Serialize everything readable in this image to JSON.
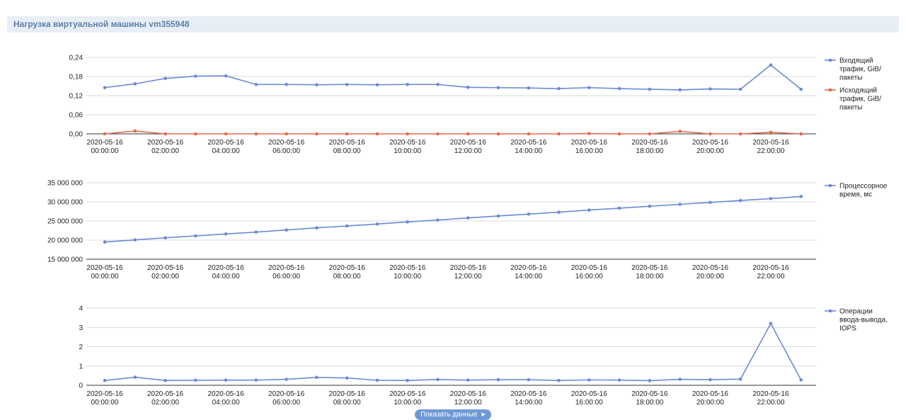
{
  "header": {
    "title": "Нагрузка виртуальной машины vm355948"
  },
  "show_data_label": "Показать данные",
  "chart_data": [
    {
      "type": "line",
      "x_ticks": [
        [
          "2020-05-16",
          "00:00:00"
        ],
        [
          "2020-05-16",
          "02:00:00"
        ],
        [
          "2020-05-16",
          "04:00:00"
        ],
        [
          "2020-05-16",
          "06:00:00"
        ],
        [
          "2020-05-16",
          "08:00:00"
        ],
        [
          "2020-05-16",
          "10:00:00"
        ],
        [
          "2020-05-16",
          "12:00:00"
        ],
        [
          "2020-05-16",
          "14:00:00"
        ],
        [
          "2020-05-16",
          "16:00:00"
        ],
        [
          "2020-05-16",
          "18:00:00"
        ],
        [
          "2020-05-16",
          "20:00:00"
        ],
        [
          "2020-05-16",
          "22:00:00"
        ]
      ],
      "x_hours": [
        0,
        1,
        2,
        3,
        4,
        5,
        6,
        7,
        8,
        9,
        10,
        11,
        12,
        13,
        14,
        15,
        16,
        17,
        18,
        19,
        20,
        21,
        22,
        23
      ],
      "y_ticks": [
        "0,00",
        "0,06",
        "0,12",
        "0,18",
        "0,24"
      ],
      "ylim": [
        0,
        0.24
      ],
      "grid": true,
      "legend_position": "right",
      "series": [
        {
          "name": "Входящий трафик, GiB/пакеты",
          "legend_lines": [
            "Входящий",
            "трафик, GiB/",
            "пакеты"
          ],
          "color": "#6a8ad8",
          "values": [
            0.145,
            0.157,
            0.174,
            0.181,
            0.182,
            0.155,
            0.155,
            0.154,
            0.155,
            0.154,
            0.155,
            0.155,
            0.146,
            0.145,
            0.144,
            0.142,
            0.145,
            0.142,
            0.14,
            0.138,
            0.141,
            0.14,
            0.216,
            0.14
          ]
        },
        {
          "name": "Исходящий трафик, GiB/пакеты",
          "legend_lines": [
            "Исходящий",
            "трафик, GiB/",
            "пакеты"
          ],
          "color": "#e4694f",
          "values": [
            0.0,
            0.009,
            0.0,
            0.0,
            0.0,
            0.0,
            0.0,
            0.0,
            0.0,
            0.0,
            0.0,
            0.0,
            0.0,
            0.0,
            0.0,
            0.0,
            0.001,
            0.0,
            0.0,
            0.008,
            0.0,
            0.0,
            0.005,
            0.0
          ]
        }
      ]
    },
    {
      "type": "line",
      "x_ticks": [
        [
          "2020-05-16",
          "00:00:00"
        ],
        [
          "2020-05-16",
          "02:00:00"
        ],
        [
          "2020-05-16",
          "04:00:00"
        ],
        [
          "2020-05-16",
          "06:00:00"
        ],
        [
          "2020-05-16",
          "08:00:00"
        ],
        [
          "2020-05-16",
          "10:00:00"
        ],
        [
          "2020-05-16",
          "12:00:00"
        ],
        [
          "2020-05-16",
          "14:00:00"
        ],
        [
          "2020-05-16",
          "16:00:00"
        ],
        [
          "2020-05-16",
          "18:00:00"
        ],
        [
          "2020-05-16",
          "20:00:00"
        ],
        [
          "2020-05-16",
          "22:00:00"
        ]
      ],
      "x_hours": [
        0,
        1,
        2,
        3,
        4,
        5,
        6,
        7,
        8,
        9,
        10,
        11,
        12,
        13,
        14,
        15,
        16,
        17,
        18,
        19,
        20,
        21,
        22,
        23
      ],
      "y_ticks": [
        "15 000 000",
        "20 000 000",
        "25 000 000",
        "30 000 000",
        "35 000 000"
      ],
      "ylim": [
        15000000,
        35000000
      ],
      "grid": true,
      "legend_position": "right",
      "series": [
        {
          "name": "Процессорное время, мс",
          "legend_lines": [
            "Процессорное",
            "время, мс"
          ],
          "color": "#6a8ad8",
          "values": [
            19500000,
            20050000,
            20600000,
            21100000,
            21600000,
            22100000,
            22650000,
            23200000,
            23700000,
            24200000,
            24750000,
            25250000,
            25800000,
            26300000,
            26800000,
            27300000,
            27850000,
            28350000,
            28850000,
            29350000,
            29850000,
            30350000,
            30850000,
            31400000
          ]
        }
      ]
    },
    {
      "type": "line",
      "x_ticks": [
        [
          "2020-05-16",
          "00:00:00"
        ],
        [
          "2020-05-16",
          "02:00:00"
        ],
        [
          "2020-05-16",
          "04:00:00"
        ],
        [
          "2020-05-16",
          "06:00:00"
        ],
        [
          "2020-05-16",
          "08:00:00"
        ],
        [
          "2020-05-16",
          "10:00:00"
        ],
        [
          "2020-05-16",
          "12:00:00"
        ],
        [
          "2020-05-16",
          "14:00:00"
        ],
        [
          "2020-05-16",
          "16:00:00"
        ],
        [
          "2020-05-16",
          "18:00:00"
        ],
        [
          "2020-05-16",
          "20:00:00"
        ],
        [
          "2020-05-16",
          "22:00:00"
        ]
      ],
      "x_hours": [
        0,
        1,
        2,
        3,
        4,
        5,
        6,
        7,
        8,
        9,
        10,
        11,
        12,
        13,
        14,
        15,
        16,
        17,
        18,
        19,
        20,
        21,
        22,
        23
      ],
      "y_ticks": [
        "0",
        "1",
        "2",
        "3",
        "4"
      ],
      "ylim": [
        0,
        4
      ],
      "grid": true,
      "legend_position": "right",
      "series": [
        {
          "name": "Операции ввода-вывода, IOPS",
          "legend_lines": [
            "Операции",
            "ввода-вывода,",
            "IOPS"
          ],
          "color": "#6a8ad8",
          "values": [
            0.25,
            0.42,
            0.25,
            0.26,
            0.27,
            0.27,
            0.31,
            0.41,
            0.38,
            0.26,
            0.25,
            0.3,
            0.27,
            0.29,
            0.29,
            0.25,
            0.28,
            0.27,
            0.24,
            0.31,
            0.29,
            0.32,
            3.2,
            0.28
          ]
        }
      ]
    }
  ]
}
